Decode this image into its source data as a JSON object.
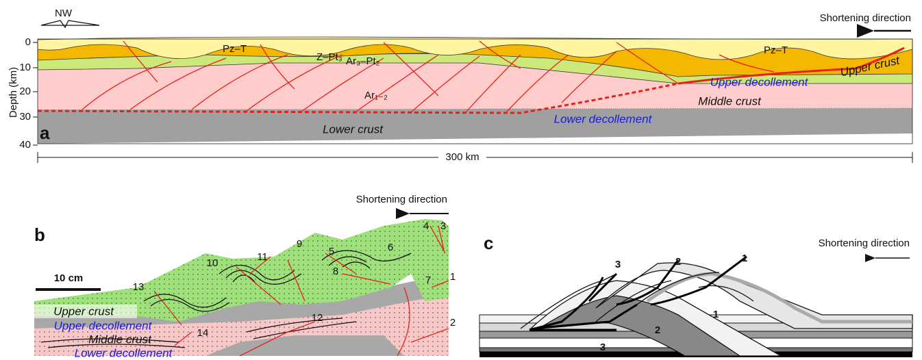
{
  "panel_a": {
    "label": "a",
    "compass": "NW",
    "arrow_label": "Shortening direction",
    "axis_title": "Depth (km)",
    "depth_ticks": [
      0,
      10,
      20,
      30,
      40
    ],
    "units": [
      "Pz–T",
      "Z–Pt₃",
      "Ar₃–Pt₂",
      "Ar₁₋₂",
      "Pz–T"
    ],
    "layers": [
      "Upper crust",
      "Upper decollement",
      "Middle crust",
      "Lower decollement",
      "Lower crust"
    ],
    "scale": "300 km"
  },
  "panel_b": {
    "label": "b",
    "arrow_label": "Shortening direction",
    "scale": "10 cm",
    "fault_numbers": [
      1,
      2,
      3,
      4,
      5,
      6,
      7,
      8,
      9,
      10,
      11,
      12,
      13,
      14
    ],
    "layers": [
      "Upper crust",
      "Upper decollement",
      "Middle crust",
      "Lower decollement"
    ]
  },
  "panel_c": {
    "label": "c",
    "arrow_label": "Shortening direction",
    "thrusts_top": [
      3,
      2,
      1
    ],
    "thrusts_bottom": [
      3,
      2,
      1
    ]
  }
}
